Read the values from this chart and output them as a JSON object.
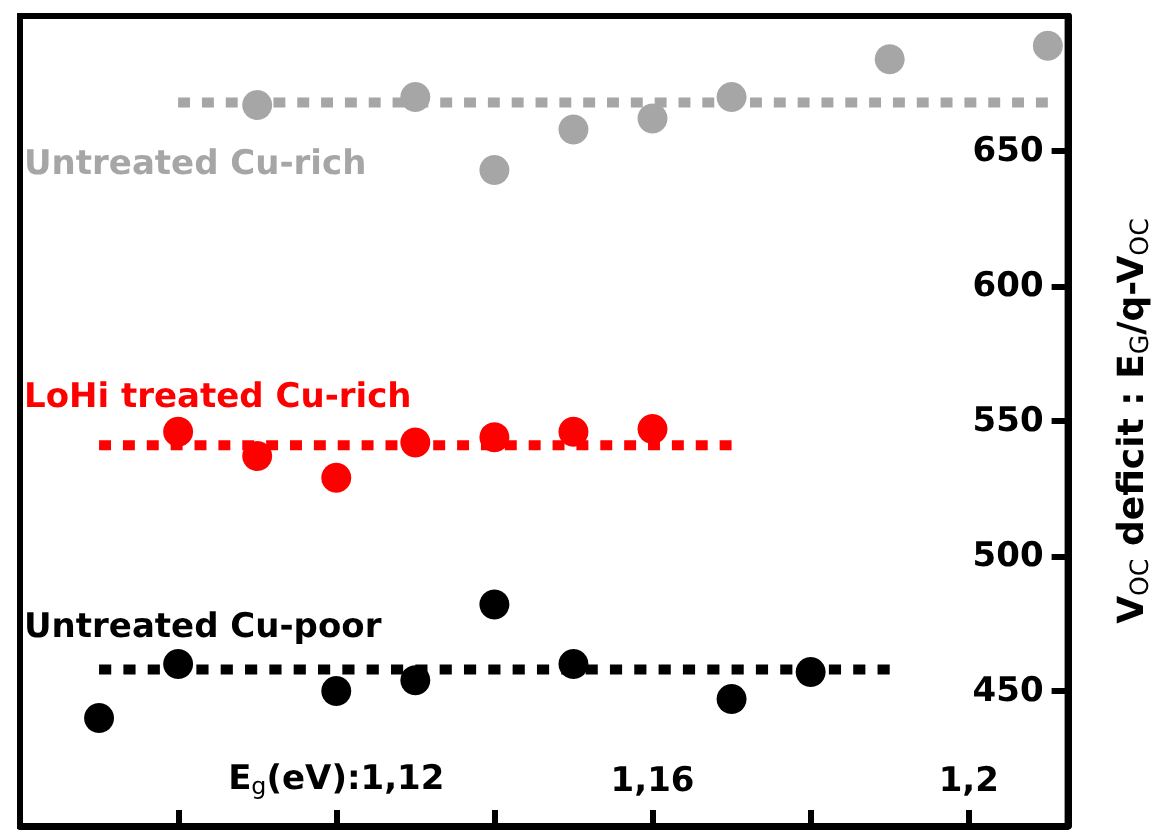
{
  "chart_data": {
    "type": "scatter",
    "ylabel": "V$_{OC}$ deficit : E$_{G}$/q-V$_{OC}$",
    "xlim": [
      1.08,
      1.2125
    ],
    "ylim": [
      400,
      700
    ],
    "xticks": [
      {
        "value": 1.1,
        "label": null
      },
      {
        "value": 1.12,
        "label": "E$_{g}$(eV):1,12"
      },
      {
        "value": 1.14,
        "label": null
      },
      {
        "value": 1.16,
        "label": "1,16"
      },
      {
        "value": 1.18,
        "label": null
      },
      {
        "value": 1.2,
        "label": "1,2"
      }
    ],
    "yticks": [
      450,
      500,
      550,
      600,
      650
    ],
    "grid": false,
    "legend": false,
    "marker": "circle",
    "series": [
      {
        "name": "Untreated Cu-rich",
        "color": "#a6a6a6",
        "x": [
          1.11,
          1.13,
          1.14,
          1.15,
          1.16,
          1.17,
          1.19,
          1.21
        ],
        "values": [
          667,
          670,
          643,
          658,
          662,
          670,
          684,
          689
        ]
      },
      {
        "name": "LoHi treated Cu-rich",
        "color": "#ff0000",
        "x": [
          1.1,
          1.11,
          1.12,
          1.13,
          1.14,
          1.15,
          1.16
        ],
        "values": [
          546,
          537,
          529,
          542,
          544,
          546,
          547
        ]
      },
      {
        "name": "Untreated Cu-poor",
        "color": "#000000",
        "x": [
          1.09,
          1.1,
          1.12,
          1.13,
          1.14,
          1.15,
          1.17,
          1.18
        ],
        "values": [
          440,
          460,
          450,
          454,
          482,
          460,
          447,
          457
        ]
      },
      {
        "type": "line",
        "color": "#a6a6a6",
        "x": [
          1.1,
          1.21
        ],
        "values": [
          668,
          668
        ],
        "marker": "none",
        "line_style": "dotted"
      },
      {
        "type": "line",
        "color": "#ff0000",
        "x": [
          1.09,
          1.17
        ],
        "values": [
          541,
          541
        ],
        "marker": "none",
        "line_style": "dotted"
      },
      {
        "type": "line",
        "color": "#000000",
        "x": [
          1.09,
          1.19
        ],
        "values": [
          458,
          458
        ],
        "marker": "none",
        "line_style": "dotted"
      }
    ]
  }
}
